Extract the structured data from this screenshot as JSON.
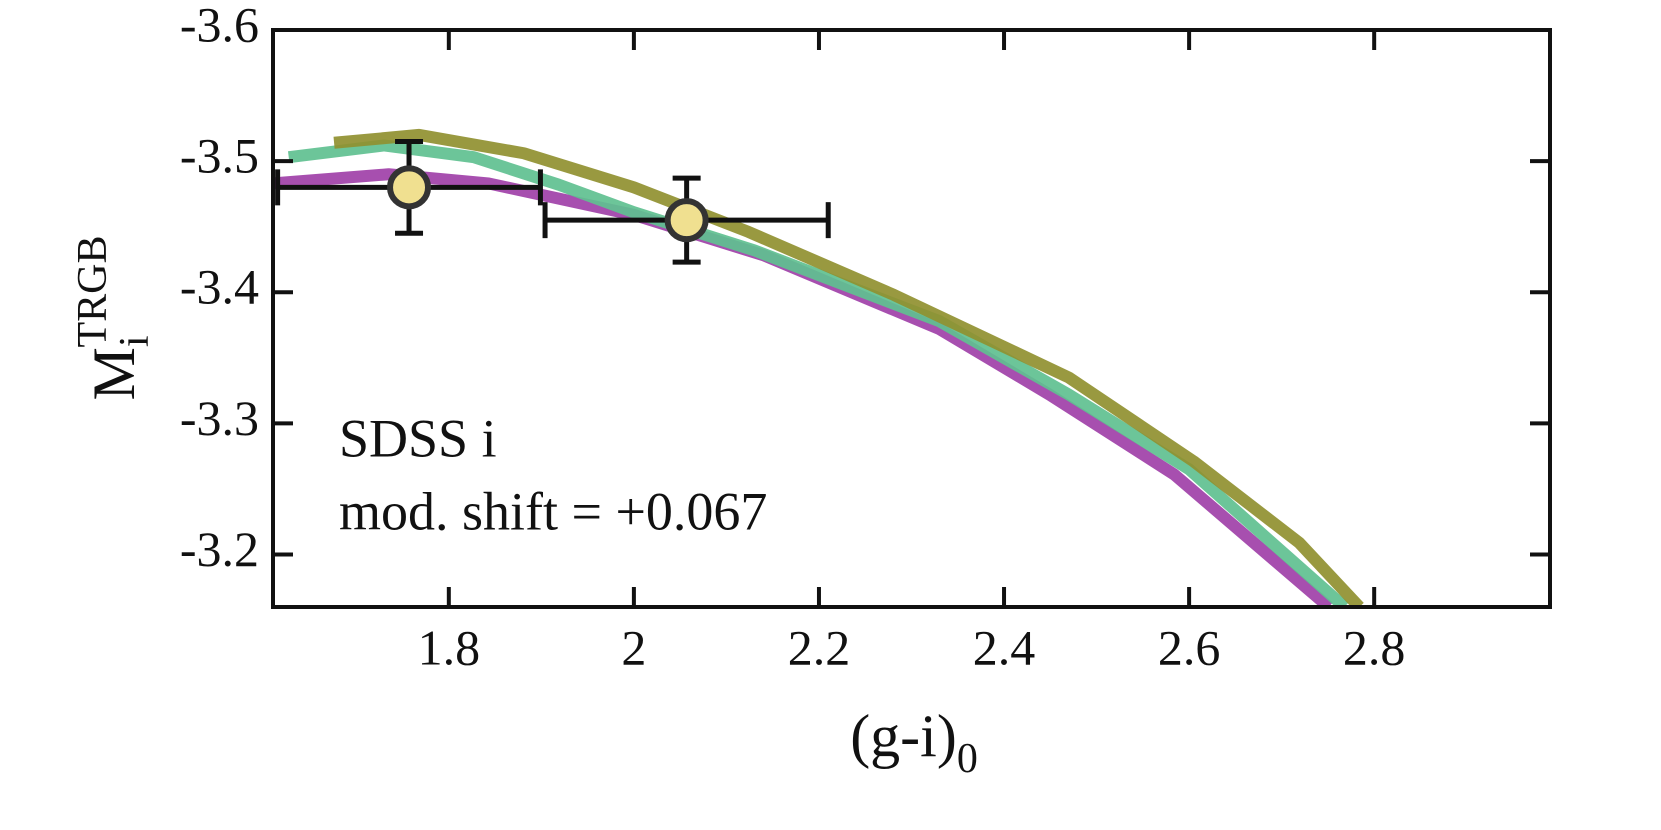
{
  "chart_data": {
    "type": "line",
    "xlabel": "(g-i)",
    "xlabel_sub": "0",
    "ylabel": "M",
    "ylabel_sub": "i",
    "ylabel_sup": "TRGB",
    "annotations": [
      "SDSS i",
      "mod. shift = +0.067"
    ],
    "xlim": [
      1.61,
      2.99
    ],
    "ylim": [
      -3.16,
      -3.6
    ],
    "xticks": [
      1.8,
      2,
      2.2,
      2.4,
      2.6,
      2.8
    ],
    "yticks": [
      -3.6,
      -3.5,
      -3.4,
      -3.3,
      -3.2
    ],
    "series": [
      {
        "color": "#a040a8",
        "x": [
          1.61,
          1.735,
          1.843,
          2.0,
          2.141,
          2.33,
          2.449,
          2.584,
          2.751
        ],
        "values": [
          -3.483,
          -3.49,
          -3.483,
          -3.459,
          -3.428,
          -3.372,
          -3.322,
          -3.261,
          -3.16
        ]
      },
      {
        "color": "#60c090",
        "x": [
          1.627,
          1.73,
          1.827,
          1.919,
          2.0,
          2.13,
          2.33,
          2.47,
          2.6,
          2.768
        ],
        "values": [
          -3.503,
          -3.512,
          -3.503,
          -3.482,
          -3.461,
          -3.432,
          -3.378,
          -3.322,
          -3.265,
          -3.16
        ]
      },
      {
        "color": "#909030",
        "x": [
          1.676,
          1.768,
          1.881,
          2.0,
          2.124,
          2.281,
          2.47,
          2.605,
          2.719,
          2.784
        ],
        "values": [
          -3.514,
          -3.52,
          -3.506,
          -3.48,
          -3.446,
          -3.398,
          -3.335,
          -3.271,
          -3.209,
          -3.16
        ]
      }
    ],
    "points": [
      {
        "x": 1.757,
        "y": -3.48,
        "xerr": 0.142,
        "yerr": 0.035
      },
      {
        "x": 2.057,
        "y": -3.455,
        "xerr": 0.153,
        "yerr": 0.032
      }
    ],
    "point_color": "#f0e090",
    "point_edge": "#333333"
  }
}
